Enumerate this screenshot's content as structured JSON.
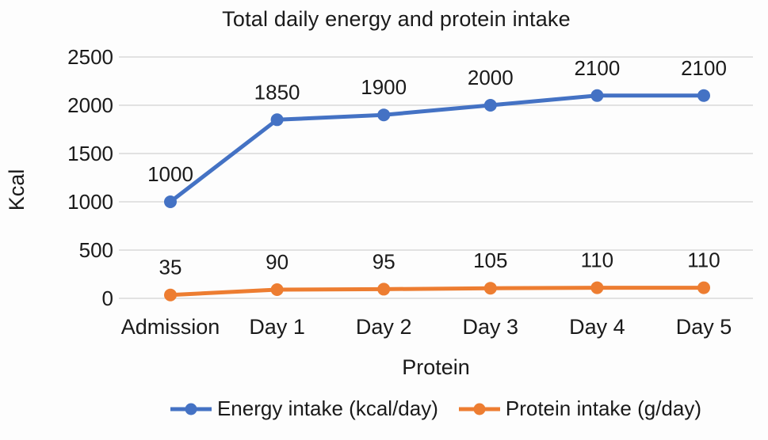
{
  "chart_data": {
    "type": "line",
    "title": "Total daily energy and protein intake",
    "xlabel": "Protein",
    "ylabel": "Kcal",
    "categories": [
      "Admission",
      "Day 1",
      "Day 2",
      "Day 3",
      "Day 4",
      "Day 5"
    ],
    "series": [
      {
        "name": "Energy intake (kcal/day)",
        "color": "#4472C4",
        "values": [
          1000,
          1850,
          1900,
          2000,
          2100,
          2100
        ]
      },
      {
        "name": "Protein intake (g/day)",
        "color": "#ED7D31",
        "values": [
          35,
          90,
          95,
          105,
          110,
          110
        ]
      }
    ],
    "ylim": [
      0,
      2500
    ],
    "yticks": [
      0,
      500,
      1000,
      1500,
      2000,
      2500
    ],
    "grid": true,
    "grid_color": "#d9d9d9",
    "legend_position": "bottom"
  }
}
